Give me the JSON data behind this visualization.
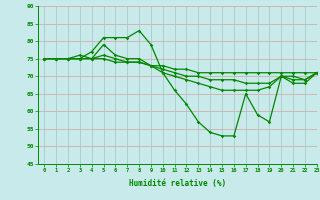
{
  "x": [
    0,
    1,
    2,
    3,
    4,
    5,
    6,
    7,
    8,
    9,
    10,
    11,
    12,
    13,
    14,
    15,
    16,
    17,
    18,
    19,
    20,
    21,
    22,
    23
  ],
  "line1": [
    75,
    75,
    75,
    75,
    77,
    81,
    81,
    81,
    83,
    79,
    71,
    66,
    62,
    57,
    54,
    53,
    53,
    65,
    59,
    57,
    70,
    68,
    68,
    71
  ],
  "line2": [
    75,
    75,
    75,
    76,
    75,
    79,
    76,
    75,
    75,
    73,
    71,
    70,
    69,
    68,
    67,
    66,
    66,
    66,
    66,
    67,
    70,
    69,
    69,
    71
  ],
  "line3": [
    75,
    75,
    75,
    75,
    75,
    76,
    75,
    74,
    74,
    73,
    72,
    71,
    70,
    70,
    69,
    69,
    69,
    68,
    68,
    68,
    70,
    70,
    69,
    71
  ],
  "line4": [
    75,
    75,
    75,
    75,
    75,
    75,
    74,
    74,
    74,
    73,
    73,
    72,
    72,
    71,
    71,
    71,
    71,
    71,
    71,
    71,
    71,
    71,
    71,
    71
  ],
  "bg_color": "#c8eaea",
  "hgrid_color": "#d4a0a0",
  "vgrid_color": "#a0c4c4",
  "line_color": "#008800",
  "xlabel": "Humidité relative (%)",
  "ylim": [
    45,
    90
  ],
  "xlim": [
    -0.5,
    23
  ],
  "yticks": [
    45,
    50,
    55,
    60,
    65,
    70,
    75,
    80,
    85,
    90
  ],
  "xticks": [
    0,
    1,
    2,
    3,
    4,
    5,
    6,
    7,
    8,
    9,
    10,
    11,
    12,
    13,
    14,
    15,
    16,
    17,
    18,
    19,
    20,
    21,
    22,
    23
  ]
}
